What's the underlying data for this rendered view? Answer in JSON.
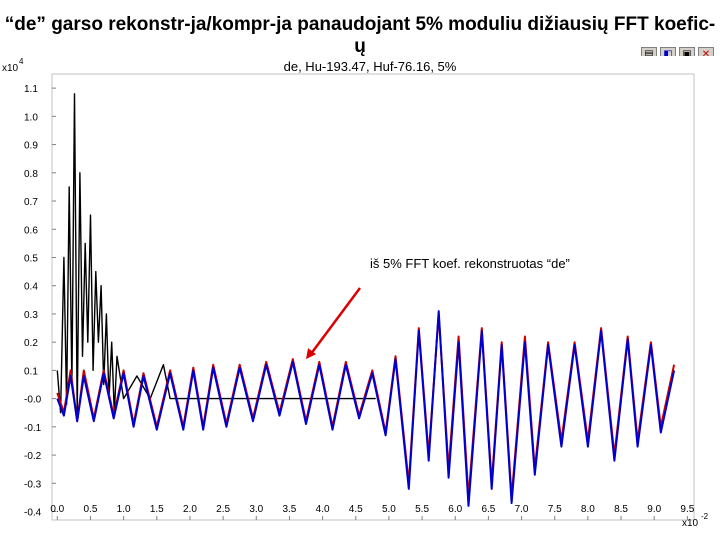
{
  "slide": {
    "title": "“de” garso rekonstr-ja/kompr-ja panaudojant 5% moduliu dižiausių FFT koefic-ų"
  },
  "toolbar": {
    "buttons": [
      {
        "name": "save-icon",
        "glyph": "▤"
      },
      {
        "name": "navigate-icon",
        "glyph": "◧"
      },
      {
        "name": "zoom-icon",
        "glyph": "▣"
      },
      {
        "name": "close-icon",
        "glyph": "✕"
      }
    ]
  },
  "chart_data": {
    "type": "line",
    "title": "de, Hu-193.47, Huf-76.16, 5%",
    "xlabel": "",
    "ylabel": "",
    "x_exponent_label": "x10",
    "x_exponent": "-2",
    "y_exponent_label": "x10",
    "y_exponent": "4",
    "xlim": [
      -0.08,
      9.6
    ],
    "ylim": [
      -0.43,
      1.15
    ],
    "xticks": [
      "0.0",
      "0.5",
      "1.0",
      "1.5",
      "2.0",
      "2.5",
      "3.0",
      "3.5",
      "4.0",
      "4.5",
      "5.0",
      "5.5",
      "6.0",
      "6.5",
      "7.0",
      "7.5",
      "8.0",
      "8.5",
      "9.0",
      "9.5"
    ],
    "yticks": [
      "1.1",
      "1.0",
      "0.9",
      "0.8",
      "0.7",
      "0.6",
      "0.5",
      "0.4",
      "0.3",
      "0.2",
      "0.1",
      "-0.0",
      "-0.1",
      "-0.2",
      "-0.3",
      "-0.4"
    ],
    "grid": false,
    "series": [
      {
        "name": "",
        "color": "#000000",
        "points": [
          [
            0.0,
            0.1
          ],
          [
            0.05,
            -0.05
          ],
          [
            0.1,
            0.5
          ],
          [
            0.14,
            -0.02
          ],
          [
            0.18,
            0.75
          ],
          [
            0.22,
            0.05
          ],
          [
            0.26,
            1.08
          ],
          [
            0.3,
            -0.05
          ],
          [
            0.34,
            0.8
          ],
          [
            0.38,
            0.15
          ],
          [
            0.42,
            0.55
          ],
          [
            0.46,
            0.2
          ],
          [
            0.5,
            0.65
          ],
          [
            0.54,
            0.1
          ],
          [
            0.58,
            0.45
          ],
          [
            0.62,
            0.2
          ],
          [
            0.66,
            0.4
          ],
          [
            0.7,
            0.05
          ],
          [
            0.74,
            0.3
          ],
          [
            0.78,
            0.0
          ],
          [
            0.82,
            0.2
          ],
          [
            0.86,
            -0.05
          ],
          [
            0.9,
            0.15
          ],
          [
            1.0,
            0.0
          ],
          [
            1.2,
            0.08
          ],
          [
            1.4,
            0.0
          ],
          [
            1.6,
            0.12
          ],
          [
            1.7,
            0.0
          ],
          [
            4.8,
            0.0
          ]
        ]
      },
      {
        "name": "",
        "color": "#cc0000",
        "points": [
          [
            0.0,
            0.02
          ],
          [
            0.1,
            -0.05
          ],
          [
            0.2,
            0.1
          ],
          [
            0.3,
            -0.08
          ],
          [
            0.4,
            0.1
          ],
          [
            0.55,
            -0.07
          ],
          [
            0.7,
            0.1
          ],
          [
            0.85,
            -0.06
          ],
          [
            1.0,
            0.1
          ],
          [
            1.15,
            -0.09
          ],
          [
            1.3,
            0.09
          ],
          [
            1.5,
            -0.1
          ],
          [
            1.7,
            0.1
          ],
          [
            1.9,
            -0.1
          ],
          [
            2.05,
            0.11
          ],
          [
            2.2,
            -0.1
          ],
          [
            2.35,
            0.12
          ],
          [
            2.55,
            -0.09
          ],
          [
            2.75,
            0.12
          ],
          [
            2.95,
            -0.07
          ],
          [
            3.15,
            0.13
          ],
          [
            3.35,
            -0.05
          ],
          [
            3.55,
            0.14
          ],
          [
            3.75,
            -0.08
          ],
          [
            3.95,
            0.13
          ],
          [
            4.15,
            -0.1
          ],
          [
            4.35,
            0.13
          ],
          [
            4.55,
            -0.06
          ],
          [
            4.75,
            0.1
          ],
          [
            4.95,
            -0.12
          ],
          [
            5.1,
            0.15
          ],
          [
            5.3,
            -0.3
          ],
          [
            5.45,
            0.25
          ],
          [
            5.6,
            -0.2
          ],
          [
            5.75,
            0.3
          ],
          [
            5.9,
            -0.25
          ],
          [
            6.05,
            0.22
          ],
          [
            6.2,
            -0.35
          ],
          [
            6.4,
            0.25
          ],
          [
            6.55,
            -0.3
          ],
          [
            6.7,
            0.2
          ],
          [
            6.85,
            -0.35
          ],
          [
            7.05,
            0.22
          ],
          [
            7.2,
            -0.25
          ],
          [
            7.4,
            0.2
          ],
          [
            7.6,
            -0.15
          ],
          [
            7.8,
            0.2
          ],
          [
            8.0,
            -0.15
          ],
          [
            8.2,
            0.25
          ],
          [
            8.4,
            -0.2
          ],
          [
            8.6,
            0.22
          ],
          [
            8.75,
            -0.15
          ],
          [
            8.95,
            0.2
          ],
          [
            9.1,
            -0.1
          ],
          [
            9.3,
            0.12
          ]
        ]
      },
      {
        "name": "",
        "color": "#0000cc",
        "points": [
          [
            0.0,
            0.0
          ],
          [
            0.1,
            -0.06
          ],
          [
            0.2,
            0.08
          ],
          [
            0.3,
            -0.08
          ],
          [
            0.4,
            0.08
          ],
          [
            0.55,
            -0.08
          ],
          [
            0.7,
            0.09
          ],
          [
            0.85,
            -0.07
          ],
          [
            1.0,
            0.09
          ],
          [
            1.15,
            -0.1
          ],
          [
            1.3,
            0.08
          ],
          [
            1.5,
            -0.11
          ],
          [
            1.7,
            0.09
          ],
          [
            1.9,
            -0.11
          ],
          [
            2.05,
            0.1
          ],
          [
            2.2,
            -0.11
          ],
          [
            2.35,
            0.11
          ],
          [
            2.55,
            -0.1
          ],
          [
            2.75,
            0.11
          ],
          [
            2.95,
            -0.08
          ],
          [
            3.15,
            0.12
          ],
          [
            3.35,
            -0.06
          ],
          [
            3.55,
            0.13
          ],
          [
            3.75,
            -0.09
          ],
          [
            3.95,
            0.12
          ],
          [
            4.15,
            -0.11
          ],
          [
            4.35,
            0.12
          ],
          [
            4.55,
            -0.07
          ],
          [
            4.75,
            0.09
          ],
          [
            4.95,
            -0.13
          ],
          [
            5.1,
            0.14
          ],
          [
            5.3,
            -0.32
          ],
          [
            5.45,
            0.24
          ],
          [
            5.6,
            -0.22
          ],
          [
            5.75,
            0.31
          ],
          [
            5.9,
            -0.28
          ],
          [
            6.05,
            0.2
          ],
          [
            6.2,
            -0.38
          ],
          [
            6.4,
            0.24
          ],
          [
            6.55,
            -0.32
          ],
          [
            6.7,
            0.19
          ],
          [
            6.85,
            -0.37
          ],
          [
            7.05,
            0.2
          ],
          [
            7.2,
            -0.27
          ],
          [
            7.4,
            0.19
          ],
          [
            7.6,
            -0.17
          ],
          [
            7.8,
            0.19
          ],
          [
            8.0,
            -0.17
          ],
          [
            8.2,
            0.24
          ],
          [
            8.4,
            -0.22
          ],
          [
            8.6,
            0.21
          ],
          [
            8.75,
            -0.17
          ],
          [
            8.95,
            0.19
          ],
          [
            9.1,
            -0.12
          ],
          [
            9.3,
            0.1
          ]
        ]
      }
    ],
    "annotation": {
      "text": "iš 5% FFT koef. rekonstruotas “de”",
      "arrow_color": "#dd0000",
      "target": [
        3.75,
        0.14
      ]
    }
  }
}
